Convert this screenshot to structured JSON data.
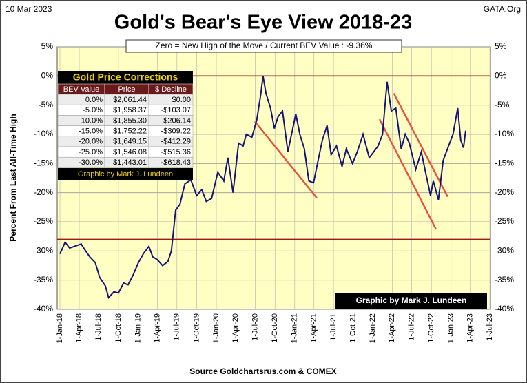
{
  "chart_data": {
    "type": "line",
    "title": "Gold's Bear's Eye View 2018-23",
    "date": "10 Mar 2023",
    "brand": "GATA.Org",
    "annotation": "Zero = New High of the Move / Current  BEV Value : -9.36%",
    "credit": "Graphic by Mark J. Lundeen",
    "source": "Source Goldchartsrus.com & COMEX",
    "ylabel": "Percent  From Last  All-Time  High",
    "xlim": [
      "2017-12-19",
      "2023-07-04"
    ],
    "ylim": [
      -40,
      5
    ],
    "grid": true,
    "yticks": [
      {
        "value": 5,
        "label": "5%"
      },
      {
        "value": 0,
        "label": "0%"
      },
      {
        "value": -5,
        "label": "-5%"
      },
      {
        "value": -10,
        "label": "-10%"
      },
      {
        "value": -15,
        "label": "-15%"
      },
      {
        "value": -20,
        "label": "-20%"
      },
      {
        "value": -25,
        "label": "-25%"
      },
      {
        "value": -30,
        "label": "-30%"
      },
      {
        "value": -35,
        "label": "-35%"
      },
      {
        "value": -40,
        "label": "-40%"
      }
    ],
    "xticks": [
      {
        "value": "2018-01-01",
        "label": "1-Jan-18"
      },
      {
        "value": "2018-04-01",
        "label": "1-Apr-18"
      },
      {
        "value": "2018-07-01",
        "label": "1-Jul-18"
      },
      {
        "value": "2018-10-01",
        "label": "1-Oct-18"
      },
      {
        "value": "2019-01-01",
        "label": "1-Jan-19"
      },
      {
        "value": "2019-04-01",
        "label": "1-Apr-19"
      },
      {
        "value": "2019-07-01",
        "label": "1-Jul-19"
      },
      {
        "value": "2019-10-01",
        "label": "1-Oct-19"
      },
      {
        "value": "2020-01-01",
        "label": "1-Jan-20"
      },
      {
        "value": "2020-04-01",
        "label": "1-Apr-20"
      },
      {
        "value": "2020-07-01",
        "label": "1-Jul-20"
      },
      {
        "value": "2020-10-01",
        "label": "1-Oct-20"
      },
      {
        "value": "2021-01-01",
        "label": "1-Jan-21"
      },
      {
        "value": "2021-04-01",
        "label": "1-Apr-21"
      },
      {
        "value": "2021-07-01",
        "label": "1-Jul-21"
      },
      {
        "value": "2021-10-01",
        "label": "1-Oct-21"
      },
      {
        "value": "2022-01-01",
        "label": "1-Jan-22"
      },
      {
        "value": "2022-04-01",
        "label": "1-Apr-22"
      },
      {
        "value": "2022-07-01",
        "label": "1-Jul-22"
      },
      {
        "value": "2022-10-01",
        "label": "1-Oct-22"
      },
      {
        "value": "2023-01-01",
        "label": "1-Jan-23"
      },
      {
        "value": "2023-04-01",
        "label": "1-Apr-23"
      },
      {
        "value": "2023-07-01",
        "label": "1-Jul-23"
      }
    ],
    "reference_lines": [
      0,
      -28
    ],
    "reference_color": "#a01818",
    "trend_lines": [
      {
        "x": [
          "2020-06-29",
          "2021-04-14"
        ],
        "values": [
          -7.8,
          -20.9
        ]
      },
      {
        "x": [
          "2022-02-01",
          "2022-10-23"
        ],
        "values": [
          -7.4,
          -26.3
        ]
      },
      {
        "x": [
          "2022-04-09",
          "2022-12-16"
        ],
        "values": [
          -3,
          -20.7
        ]
      }
    ],
    "trend_color": "#f04a3a",
    "series": [
      {
        "name": "BEV",
        "color": "#141478",
        "x": [
          "2018-01-01",
          "2018-01-25",
          "2018-02-15",
          "2018-03-10",
          "2018-04-10",
          "2018-05-01",
          "2018-05-20",
          "2018-06-15",
          "2018-07-05",
          "2018-08-01",
          "2018-08-16",
          "2018-09-10",
          "2018-10-01",
          "2018-10-25",
          "2018-11-15",
          "2018-12-10",
          "2019-01-02",
          "2019-01-25",
          "2019-02-20",
          "2019-03-10",
          "2019-04-01",
          "2019-04-25",
          "2019-05-20",
          "2019-06-05",
          "2019-06-25",
          "2019-07-15",
          "2019-08-07",
          "2019-09-04",
          "2019-10-01",
          "2019-10-25",
          "2019-11-15",
          "2019-12-10",
          "2020-01-08",
          "2020-02-05",
          "2020-02-24",
          "2020-03-19",
          "2020-04-14",
          "2020-05-05",
          "2020-05-20",
          "2020-06-15",
          "2020-07-08",
          "2020-07-27",
          "2020-08-06",
          "2020-08-20",
          "2020-09-10",
          "2020-09-28",
          "2020-10-15",
          "2020-11-05",
          "2020-11-30",
          "2020-12-20",
          "2021-01-06",
          "2021-01-25",
          "2021-02-15",
          "2021-03-08",
          "2021-03-30",
          "2021-04-20",
          "2021-05-10",
          "2021-06-01",
          "2021-06-20",
          "2021-07-15",
          "2021-08-10",
          "2021-08-30",
          "2021-09-28",
          "2021-10-20",
          "2021-11-16",
          "2021-12-15",
          "2022-01-05",
          "2022-01-25",
          "2022-02-15",
          "2022-03-08",
          "2022-03-28",
          "2022-04-18",
          "2022-05-13",
          "2022-06-01",
          "2022-06-20",
          "2022-07-20",
          "2022-08-15",
          "2022-09-01",
          "2022-09-27",
          "2022-10-10",
          "2022-11-03",
          "2022-11-25",
          "2022-12-15",
          "2023-01-10",
          "2023-02-01",
          "2023-02-15",
          "2023-02-28",
          "2023-03-10"
        ],
        "values": [
          -30.5,
          -28.5,
          -29.5,
          -29.2,
          -28.8,
          -30,
          -31,
          -32,
          -34.5,
          -36,
          -38,
          -37,
          -37.2,
          -35.5,
          -35.8,
          -34,
          -32,
          -30.5,
          -29.2,
          -31,
          -31.5,
          -32.5,
          -31.8,
          -30,
          -23,
          -22,
          -18.5,
          -17.8,
          -20.5,
          -19.5,
          -21.5,
          -21,
          -16.5,
          -18,
          -14,
          -20,
          -11.5,
          -12,
          -10,
          -10.5,
          -7.5,
          -3,
          0,
          -3,
          -5.5,
          -9,
          -7,
          -6,
          -13,
          -9.5,
          -6.5,
          -10,
          -12.5,
          -18,
          -18.3,
          -14.5,
          -11,
          -8.5,
          -13.5,
          -12,
          -15.5,
          -12.5,
          -15,
          -13,
          -10,
          -14,
          -13,
          -12,
          -10,
          -1,
          -6,
          -5.5,
          -12.5,
          -10,
          -11.5,
          -16,
          -13,
          -16,
          -20.5,
          -18,
          -21.2,
          -14.5,
          -12.5,
          -10,
          -5.5,
          -11,
          -12.3,
          -9.36
        ]
      }
    ],
    "table": {
      "title": "Gold Price Corrections",
      "columns": [
        "BEV Value",
        "Price",
        "$ Decline"
      ],
      "rows": [
        [
          "0.0%",
          "$2,061.44",
          "$0.00"
        ],
        [
          "-5.0%",
          "$1,958.37",
          "-$103.07"
        ],
        [
          "-10.0%",
          "$1,855.30",
          "-$206.14"
        ],
        [
          "-15.0%",
          "$1,752.22",
          "-$309.22"
        ],
        [
          "-20.0%",
          "$1,649.15",
          "-$412.29"
        ],
        [
          "-25.0%",
          "$1,546.08",
          "-$515.36"
        ],
        [
          "-30.0%",
          "$1,443.01",
          "-$618.43"
        ]
      ],
      "footer": "Graphic by Mark J. Lundeen"
    }
  }
}
